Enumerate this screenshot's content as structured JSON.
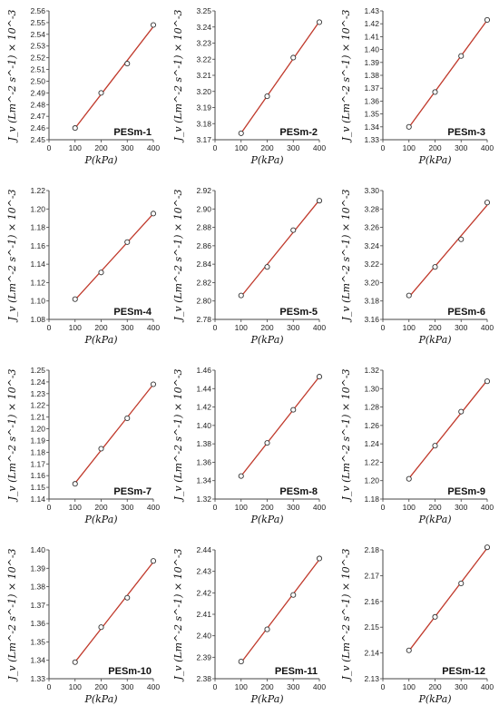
{
  "figure": {
    "xlabel": "P(kPa)",
    "ylabel": "J_v (Lm^-2 s^-1) × 10^-3"
  },
  "chart_data": [
    {
      "type": "scatter",
      "title": "PESm-1",
      "x": [
        100,
        200,
        300,
        400
      ],
      "y": [
        2.46,
        2.49,
        2.515,
        2.548
      ],
      "xlim": [
        0,
        400
      ],
      "ylim": [
        2.45,
        2.56
      ],
      "yticks": [
        "2.45",
        "2.46",
        "2.47",
        "2.48",
        "2.49",
        "2.50",
        "2.51",
        "2.52",
        "2.53",
        "2.54",
        "2.55",
        "2.56"
      ],
      "xticks": [
        "0",
        "100",
        "200",
        "300",
        "400"
      ]
    },
    {
      "type": "scatter",
      "title": "PESm-2",
      "x": [
        100,
        200,
        300,
        400
      ],
      "y": [
        3.174,
        3.197,
        3.221,
        3.243
      ],
      "xlim": [
        0,
        400
      ],
      "ylim": [
        3.17,
        3.25
      ],
      "yticks": [
        "3.17",
        "3.18",
        "3.19",
        "3.20",
        "3.21",
        "3.22",
        "3.23",
        "3.24",
        "3.25"
      ],
      "xticks": [
        "0",
        "100",
        "200",
        "300",
        "400"
      ]
    },
    {
      "type": "scatter",
      "title": "PESm-3",
      "x": [
        100,
        200,
        300,
        400
      ],
      "y": [
        1.34,
        1.367,
        1.395,
        1.423
      ],
      "xlim": [
        0,
        400
      ],
      "ylim": [
        1.33,
        1.43
      ],
      "yticks": [
        "1.33",
        "1.34",
        "1.35",
        "1.36",
        "1.37",
        "1.38",
        "1.39",
        "1.40",
        "1.41",
        "1.42",
        "1.43"
      ],
      "xticks": [
        "0",
        "100",
        "200",
        "300",
        "400"
      ]
    },
    {
      "type": "scatter",
      "title": "PESm-4",
      "x": [
        100,
        200,
        300,
        400
      ],
      "y": [
        1.102,
        1.131,
        1.164,
        1.195
      ],
      "xlim": [
        0,
        400
      ],
      "ylim": [
        1.08,
        1.22
      ],
      "yticks": [
        "1.08",
        "1.10",
        "1.12",
        "1.14",
        "1.16",
        "1.18",
        "1.20",
        "1.22"
      ],
      "xticks": [
        "0",
        "100",
        "200",
        "300",
        "400"
      ]
    },
    {
      "type": "scatter",
      "title": "PESm-5",
      "x": [
        100,
        200,
        300,
        400
      ],
      "y": [
        2.806,
        2.837,
        2.877,
        2.909
      ],
      "xlim": [
        0,
        400
      ],
      "ylim": [
        2.78,
        2.92
      ],
      "yticks": [
        "2.78",
        "2.80",
        "2.82",
        "2.84",
        "2.86",
        "2.88",
        "2.90",
        "2.92"
      ],
      "xticks": [
        "0",
        "100",
        "200",
        "300",
        "400"
      ]
    },
    {
      "type": "scatter",
      "title": "PESm-6",
      "x": [
        100,
        200,
        300,
        400
      ],
      "y": [
        3.186,
        3.217,
        3.247,
        3.287
      ],
      "xlim": [
        0,
        400
      ],
      "ylim": [
        3.16,
        3.3
      ],
      "yticks": [
        "3.16",
        "3.18",
        "3.20",
        "3.22",
        "3.24",
        "3.26",
        "3.28",
        "3.30"
      ],
      "xticks": [
        "0",
        "100",
        "200",
        "300",
        "400"
      ]
    },
    {
      "type": "scatter",
      "title": "PESm-7",
      "x": [
        100,
        200,
        300,
        400
      ],
      "y": [
        1.153,
        1.183,
        1.209,
        1.238
      ],
      "xlim": [
        0,
        400
      ],
      "ylim": [
        1.14,
        1.25
      ],
      "yticks": [
        "1.14",
        "1.15",
        "1.16",
        "1.17",
        "1.18",
        "1.19",
        "1.20",
        "1.21",
        "1.22",
        "1.23",
        "1.24",
        "1.25"
      ],
      "xticks": [
        "0",
        "100",
        "200",
        "300",
        "400"
      ]
    },
    {
      "type": "scatter",
      "title": "PESm-8",
      "x": [
        100,
        200,
        300,
        400
      ],
      "y": [
        1.345,
        1.381,
        1.417,
        1.453
      ],
      "xlim": [
        0,
        400
      ],
      "ylim": [
        1.32,
        1.46
      ],
      "yticks": [
        "1.32",
        "1.34",
        "1.36",
        "1.38",
        "1.40",
        "1.42",
        "1.44",
        "1.46"
      ],
      "xticks": [
        "0",
        "100",
        "200",
        "300",
        "400"
      ]
    },
    {
      "type": "scatter",
      "title": "PESm-9",
      "x": [
        100,
        200,
        300,
        400
      ],
      "y": [
        1.202,
        1.238,
        1.275,
        1.308
      ],
      "xlim": [
        0,
        400
      ],
      "ylim": [
        1.18,
        1.32
      ],
      "yticks": [
        "1.18",
        "1.20",
        "1.22",
        "1.24",
        "1.26",
        "1.28",
        "1.30",
        "1.32"
      ],
      "xticks": [
        "0",
        "100",
        "200",
        "300",
        "400"
      ]
    },
    {
      "type": "scatter",
      "title": "PESm-10",
      "x": [
        100,
        200,
        300,
        400
      ],
      "y": [
        1.339,
        1.358,
        1.374,
        1.394
      ],
      "xlim": [
        0,
        400
      ],
      "ylim": [
        1.33,
        1.4
      ],
      "yticks": [
        "1.33",
        "1.34",
        "1.35",
        "1.36",
        "1.37",
        "1.38",
        "1.39",
        "1.40"
      ],
      "xticks": [
        "0",
        "100",
        "200",
        "300",
        "400"
      ]
    },
    {
      "type": "scatter",
      "title": "PESm-11",
      "x": [
        100,
        200,
        300,
        400
      ],
      "y": [
        2.388,
        2.403,
        2.419,
        2.436
      ],
      "xlim": [
        0,
        400
      ],
      "ylim": [
        2.38,
        2.44
      ],
      "yticks": [
        "2.38",
        "2.39",
        "2.40",
        "2.41",
        "2.42",
        "2.43",
        "2.44"
      ],
      "xticks": [
        "0",
        "100",
        "200",
        "300",
        "400"
      ]
    },
    {
      "type": "scatter",
      "title": "PESm-12",
      "x": [
        100,
        200,
        300,
        400
      ],
      "y": [
        2.141,
        2.154,
        2.167,
        2.181
      ],
      "xlim": [
        0,
        400
      ],
      "ylim": [
        2.13,
        2.18
      ],
      "yticks": [
        "2.13",
        "2.14",
        "2.15",
        "2.16",
        "2.17",
        "2.18"
      ],
      "xticks": [
        "0",
        "100",
        "200",
        "300",
        "400"
      ]
    }
  ]
}
